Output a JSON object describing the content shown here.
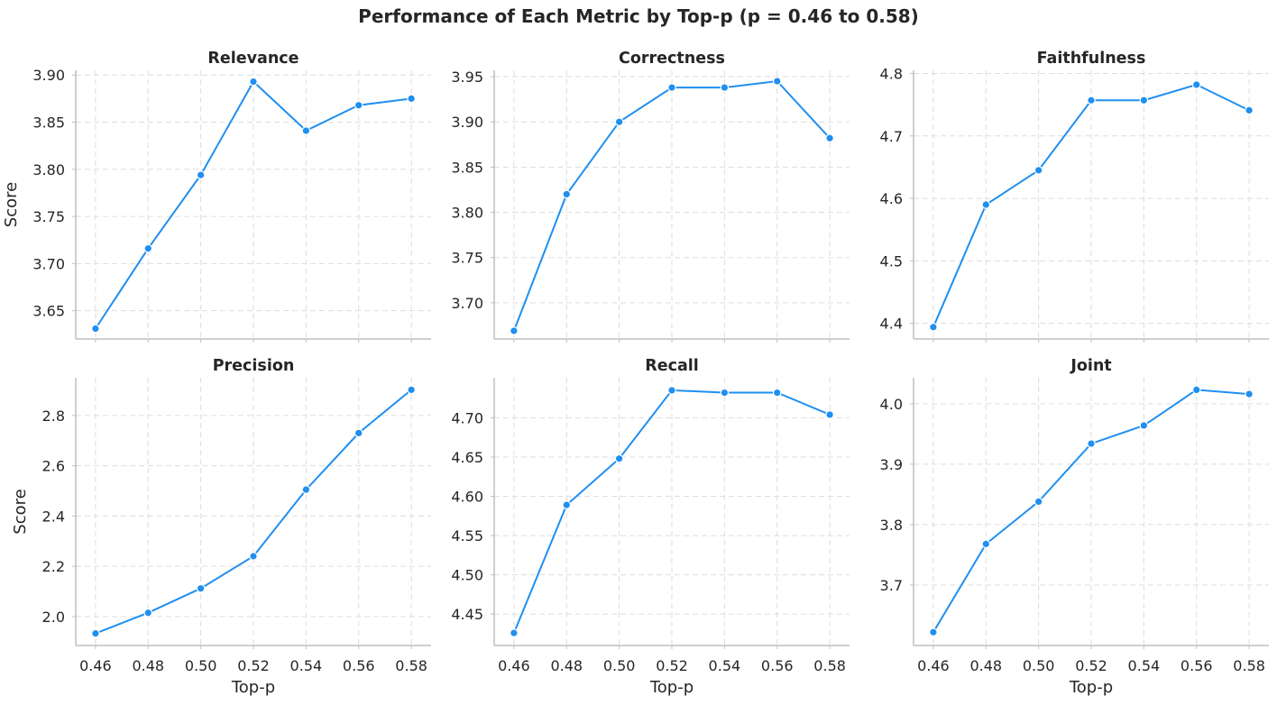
{
  "figure": {
    "title": "Performance of Each Metric by Top-p (p = 0.46 to 0.58)",
    "xlabel": "Top-p",
    "ylabel": "Score",
    "line_color": "#1f8ff0"
  },
  "chart_data": [
    {
      "type": "line",
      "title": "Relevance",
      "x": [
        0.46,
        0.48,
        0.5,
        0.52,
        0.54,
        0.56,
        0.58
      ],
      "values": [
        3.631,
        3.716,
        3.794,
        3.893,
        3.841,
        3.868,
        3.875
      ],
      "ylim": [
        3.62,
        3.905
      ],
      "xticks": [
        "0.46",
        "0.48",
        "0.50",
        "0.52",
        "0.54",
        "0.56",
        "0.58"
      ],
      "yticks": [
        "3.65",
        "3.70",
        "3.75",
        "3.80",
        "3.85",
        "3.90"
      ],
      "xlabel": "",
      "ylabel": "Score",
      "grid": true
    },
    {
      "type": "line",
      "title": "Correctness",
      "x": [
        0.46,
        0.48,
        0.5,
        0.52,
        0.54,
        0.56,
        0.58
      ],
      "values": [
        3.669,
        3.82,
        3.9,
        3.938,
        3.938,
        3.945,
        3.882
      ],
      "ylim": [
        3.66,
        3.957
      ],
      "xticks": [
        "0.46",
        "0.48",
        "0.50",
        "0.52",
        "0.54",
        "0.56",
        "0.58"
      ],
      "yticks": [
        "3.70",
        "3.75",
        "3.80",
        "3.85",
        "3.90",
        "3.95"
      ],
      "xlabel": "",
      "ylabel": "",
      "grid": true
    },
    {
      "type": "line",
      "title": "Faithfulness",
      "x": [
        0.46,
        0.48,
        0.5,
        0.52,
        0.54,
        0.56,
        0.58
      ],
      "values": [
        4.394,
        4.59,
        4.645,
        4.757,
        4.757,
        4.782,
        4.741
      ],
      "ylim": [
        4.375,
        4.805
      ],
      "xticks": [
        "0.46",
        "0.48",
        "0.50",
        "0.52",
        "0.54",
        "0.56",
        "0.58"
      ],
      "yticks": [
        "4.4",
        "4.5",
        "4.6",
        "4.7",
        "4.8"
      ],
      "xlabel": "",
      "ylabel": "",
      "grid": true
    },
    {
      "type": "line",
      "title": "Precision",
      "x": [
        0.46,
        0.48,
        0.5,
        0.52,
        0.54,
        0.56,
        0.58
      ],
      "values": [
        1.933,
        2.015,
        2.112,
        2.24,
        2.505,
        2.73,
        2.902
      ],
      "ylim": [
        1.885,
        2.95
      ],
      "xticks": [
        "0.46",
        "0.48",
        "0.50",
        "0.52",
        "0.54",
        "0.56",
        "0.58"
      ],
      "yticks": [
        "2.0",
        "2.2",
        "2.4",
        "2.6",
        "2.8"
      ],
      "xlabel": "Top-p",
      "ylabel": "Score",
      "grid": true
    },
    {
      "type": "line",
      "title": "Recall",
      "x": [
        0.46,
        0.48,
        0.5,
        0.52,
        0.54,
        0.56,
        0.58
      ],
      "values": [
        4.426,
        4.589,
        4.648,
        4.735,
        4.732,
        4.732,
        4.704
      ],
      "ylim": [
        4.41,
        4.751
      ],
      "xticks": [
        "0.46",
        "0.48",
        "0.50",
        "0.52",
        "0.54",
        "0.56",
        "0.58"
      ],
      "yticks": [
        "4.45",
        "4.50",
        "4.55",
        "4.60",
        "4.65",
        "4.70"
      ],
      "xlabel": "Top-p",
      "ylabel": "",
      "grid": true
    },
    {
      "type": "line",
      "title": "Joint",
      "x": [
        0.46,
        0.48,
        0.5,
        0.52,
        0.54,
        0.56,
        0.58
      ],
      "values": [
        3.622,
        3.768,
        3.838,
        3.934,
        3.964,
        4.023,
        4.016
      ],
      "ylim": [
        3.6,
        4.043
      ],
      "xticks": [
        "0.46",
        "0.48",
        "0.50",
        "0.52",
        "0.54",
        "0.56",
        "0.58"
      ],
      "yticks": [
        "3.7",
        "3.8",
        "3.9",
        "4.0"
      ],
      "xlabel": "Top-p",
      "ylabel": "",
      "grid": true
    }
  ]
}
